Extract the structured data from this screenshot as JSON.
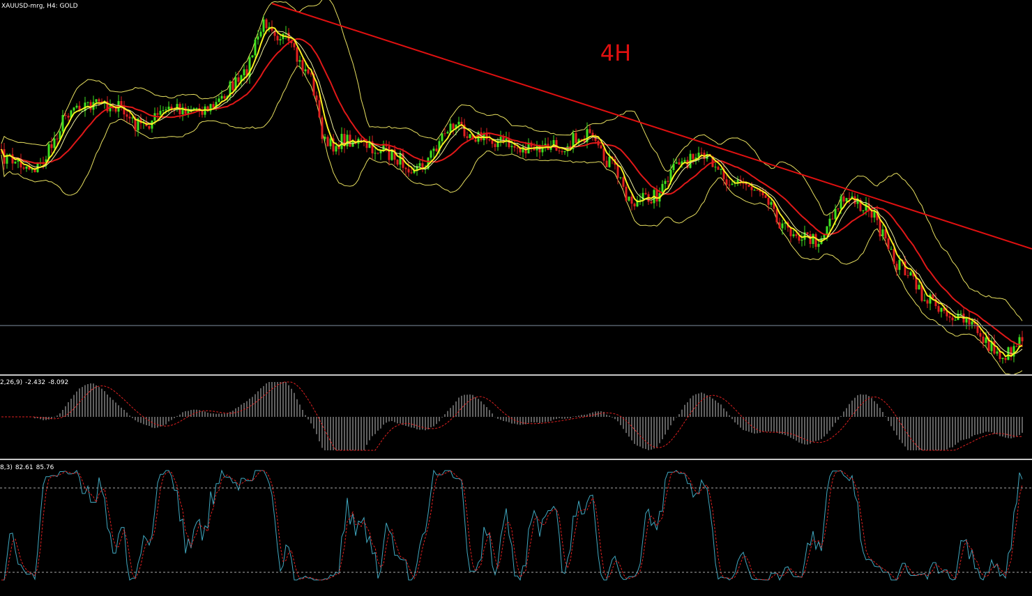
{
  "header": {
    "symbol": "XAUUSD-mrg, H4:  GOLD",
    "annotation": "4H"
  },
  "macd": {
    "label": "2,26,9)",
    "main": -2.432,
    "signal": -8.092
  },
  "stochastic": {
    "label": "8,3)",
    "main": 82.61,
    "signal": 85.76
  }
}
